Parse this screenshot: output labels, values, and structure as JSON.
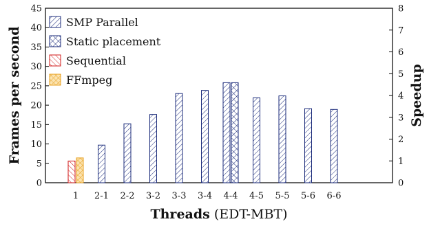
{
  "chart_data": {
    "type": "bar",
    "xlabel_bold": "Threads",
    "xlabel_rest": "(EDT-MBT)",
    "ylabel": "Frames per second",
    "y2label": "Speedup",
    "ylim": [
      0,
      45
    ],
    "y2lim": [
      0,
      8
    ],
    "yticks": [
      "0",
      "5",
      "10",
      "15",
      "20",
      "25",
      "30",
      "35",
      "40",
      "45"
    ],
    "y2ticks": [
      "0",
      "1",
      "2",
      "3",
      "4",
      "5",
      "6",
      "7",
      "8"
    ],
    "categories": [
      "1",
      "2-1",
      "2-2",
      "3-2",
      "3-3",
      "3-4",
      "4-4",
      "4-5",
      "5-5",
      "5-6",
      "6-6"
    ],
    "legend_position": "top-left",
    "series": [
      {
        "name": "SMP Parallel",
        "pattern": "diag-fwd",
        "color": "#1a2a7a",
        "values": [
          null,
          9.7,
          15.2,
          17.6,
          23.0,
          23.8,
          25.8,
          21.9,
          22.4,
          19.1,
          18.9
        ]
      },
      {
        "name": "Static placement",
        "pattern": "cross",
        "color": "#1a2a7a",
        "values": [
          null,
          null,
          null,
          null,
          null,
          null,
          25.8,
          null,
          null,
          null,
          null
        ]
      },
      {
        "name": "Sequential",
        "pattern": "diag-back",
        "color": "#d11a1a",
        "values": [
          5.6,
          null,
          null,
          null,
          null,
          null,
          null,
          null,
          null,
          null,
          null
        ]
      },
      {
        "name": "FFmpeg",
        "pattern": "cross-orange",
        "color": "#e8a020",
        "values": [
          6.4,
          null,
          null,
          null,
          null,
          null,
          null,
          null,
          null,
          null,
          null
        ]
      }
    ]
  }
}
